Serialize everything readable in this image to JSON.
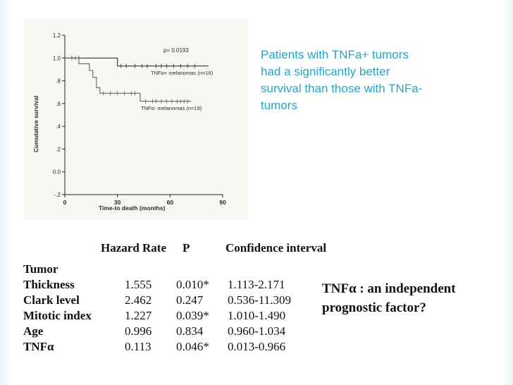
{
  "slide": {
    "callout_text": "Patients with TNFa+ tumors\nhad a significantly better\nsurvival than those with TNFa-\ntumors",
    "note_text": "TNFα : an independent prognostic factor?"
  },
  "chart_data": {
    "type": "line",
    "xlabel": "Time-to death (months)",
    "ylabel": "Cumulative survival",
    "xlim": [
      0,
      90
    ],
    "ylim": [
      -0.2,
      1.2
    ],
    "x_ticks": [
      "0",
      "30",
      "60",
      "90"
    ],
    "y_ticks": [
      "1.2",
      "1.0",
      ".8",
      ".6",
      ".4",
      ".2",
      "0.0",
      "-.2"
    ],
    "annotations": [
      "p= 0.0193"
    ],
    "series": [
      {
        "name": "TNFα+ melanomas (n=16)",
        "steps": [
          [
            0,
            1.0
          ],
          [
            30,
            1.0
          ],
          [
            30,
            0.93
          ],
          [
            82,
            0.93
          ]
        ],
        "censor_x": [
          4,
          8,
          32,
          35,
          40,
          44,
          47,
          52,
          55,
          58,
          62,
          66,
          70,
          74
        ]
      },
      {
        "name": "TNFα- melanomas (n=19)",
        "steps": [
          [
            0,
            1.0
          ],
          [
            8,
            1.0
          ],
          [
            8,
            0.95
          ],
          [
            14,
            0.95
          ],
          [
            14,
            0.89
          ],
          [
            16,
            0.89
          ],
          [
            16,
            0.83
          ],
          [
            18,
            0.83
          ],
          [
            18,
            0.74
          ],
          [
            20,
            0.74
          ],
          [
            20,
            0.69
          ],
          [
            43,
            0.69
          ],
          [
            43,
            0.62
          ],
          [
            72,
            0.62
          ]
        ],
        "censor_x": [
          4,
          6,
          22,
          26,
          30,
          34,
          38,
          40,
          46,
          50,
          52,
          55,
          58,
          61,
          64,
          66,
          68,
          70
        ]
      }
    ]
  },
  "stats_table": {
    "headers": [
      "Hazard Rate",
      "P",
      "Confidence interval"
    ],
    "section_label": "Tumor",
    "rows": [
      {
        "label": "Thickness",
        "hazard": "1.555",
        "p": "0.010*",
        "ci": "1.113-2.171"
      },
      {
        "label": "Clark level",
        "hazard": "2.462",
        "p": "0.247",
        "ci": "0.536-11.309"
      },
      {
        "label": "Mitotic index",
        "hazard": "1.227",
        "p": "0.039*",
        "ci": "1.010-1.490"
      },
      {
        "label": "Age",
        "hazard": "0.996",
        "p": "0.834",
        "ci": "0.960-1.034"
      },
      {
        "label": "TNFα",
        "hazard": "0.113",
        "p": "0.046*",
        "ci": "0.013-0.966"
      }
    ]
  }
}
